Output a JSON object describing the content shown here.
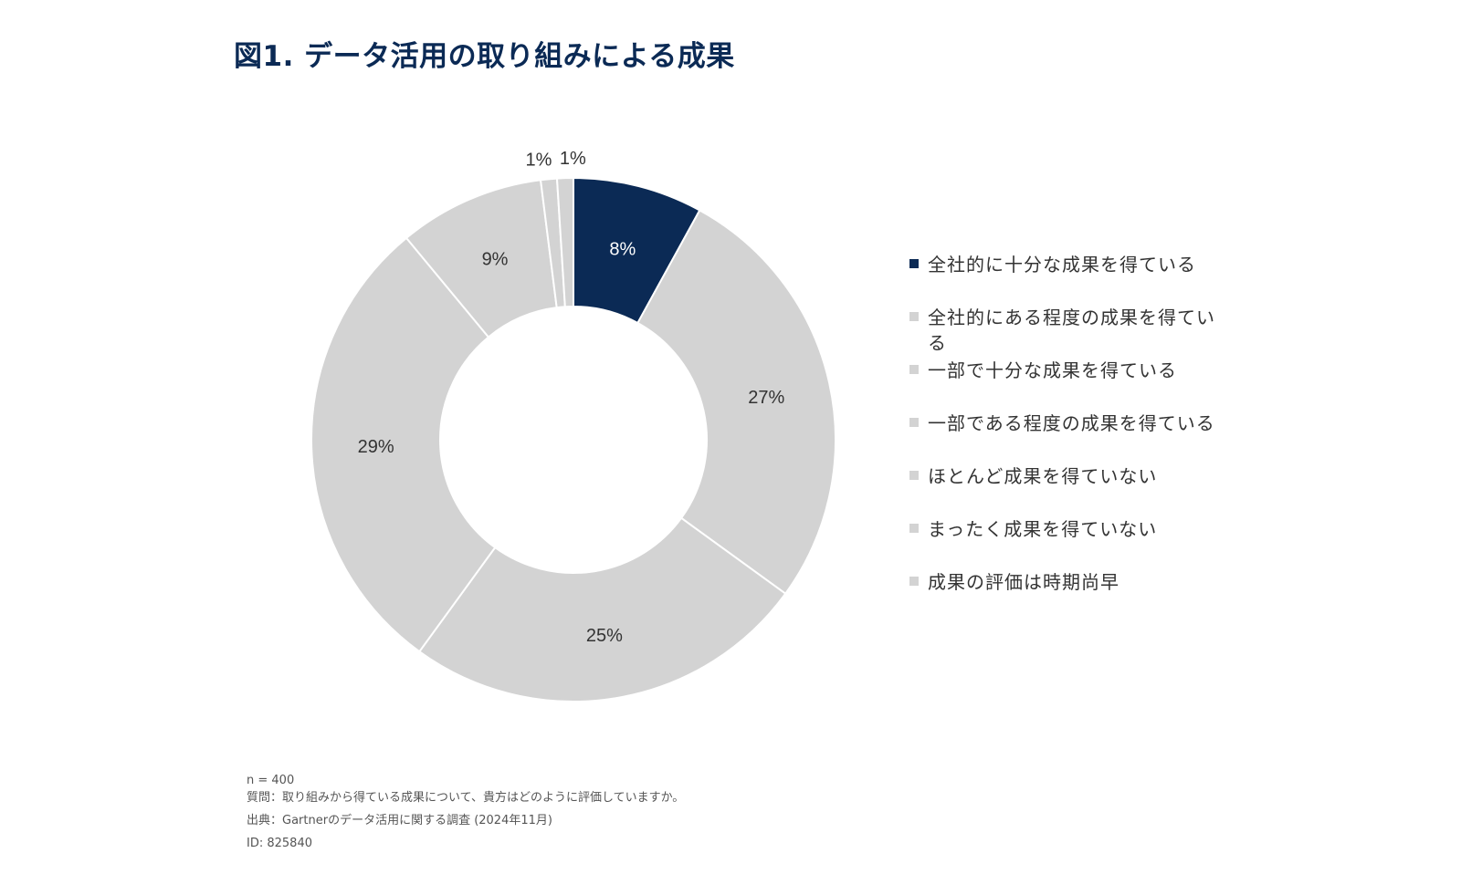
{
  "title": "図1. データ活用の取り組みによる成果",
  "chart_data": {
    "type": "pie",
    "variant": "donut",
    "title": "図1. データ活用の取り組みによる成果",
    "categories": [
      "全社的に十分な成果を得ている",
      "全社的にある程度の成果を得ている",
      "一部で十分な成果を得ている",
      "一部である程度の成果を得ている",
      "ほとんど成果を得ていない",
      "まったく成果を得ていない",
      "成果の評価は時期尚早"
    ],
    "values": [
      8,
      27,
      25,
      29,
      9,
      1,
      1
    ],
    "labels": [
      "8%",
      "27%",
      "25%",
      "29%",
      "9%",
      "1%",
      "1%"
    ],
    "colors": [
      "#0b2a55",
      "#d3d3d3",
      "#d3d3d3",
      "#d3d3d3",
      "#d3d3d3",
      "#d3d3d3",
      "#d3d3d3"
    ],
    "legend_position": "right"
  },
  "footnotes": {
    "n": "n = 400",
    "question": "質問：取り組みから得ている成果について、貴方はどのように評価していますか。",
    "source": "出典：Gartnerのデータ活用に関する調査 (2024年11月)",
    "id": "ID: 825840"
  }
}
